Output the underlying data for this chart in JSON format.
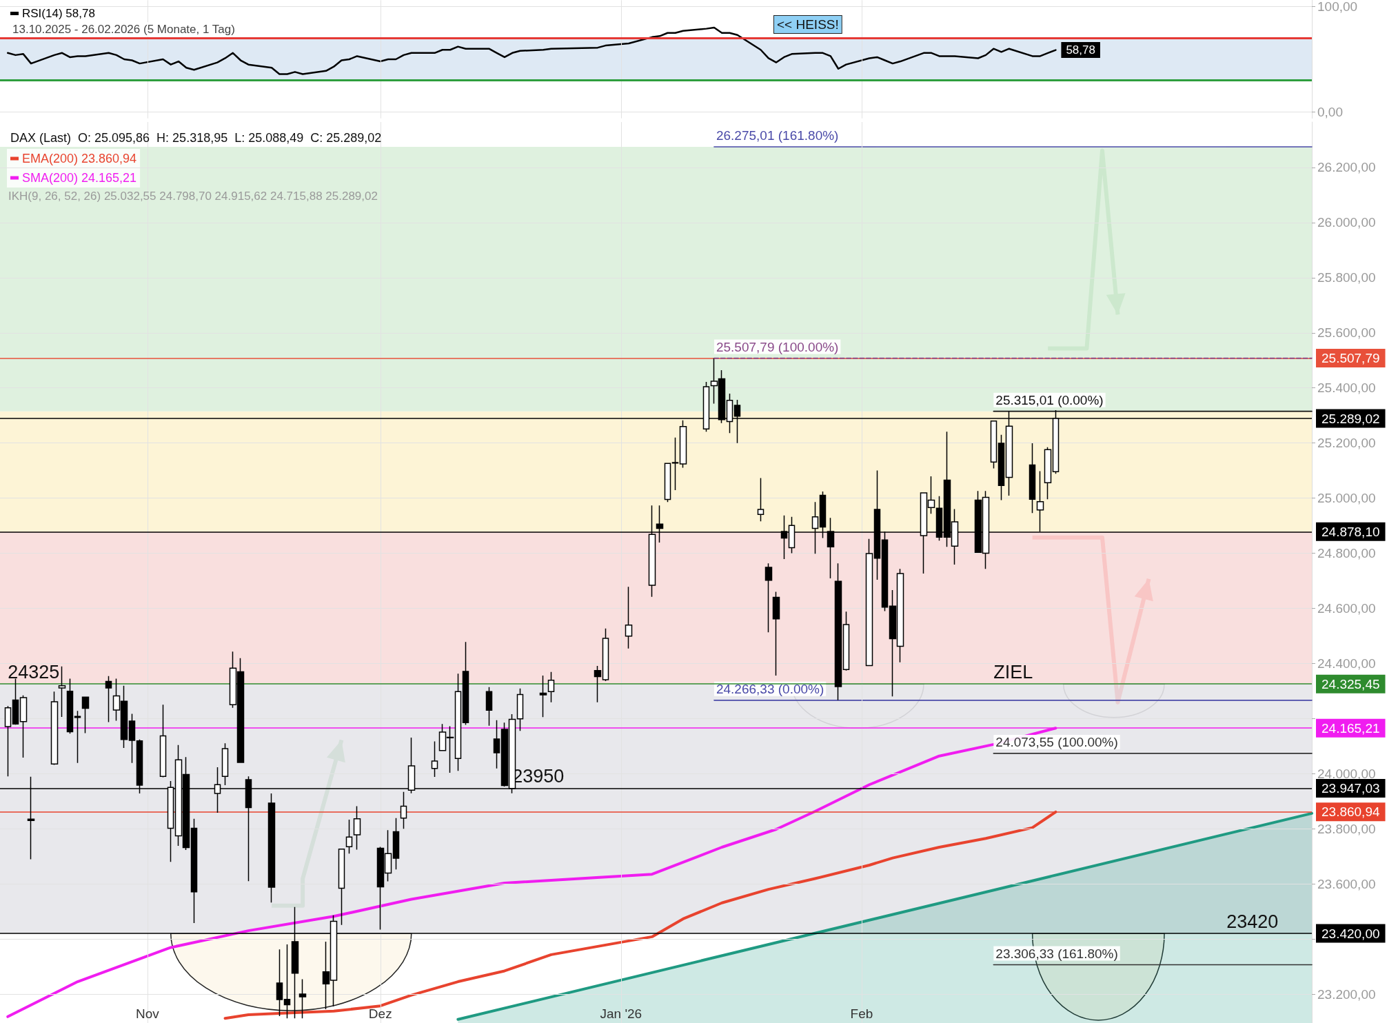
{
  "chart_data": [
    {
      "type": "line",
      "subtitle": "13.10.2025 - 26.02.2026 (5 Monate, 1 Tag)",
      "x": [
        "2025-10-14",
        "2025-10-15",
        "2025-10-16",
        "2025-10-17",
        "2025-10-20",
        "2025-10-21",
        "2025-10-22",
        "2025-10-23",
        "2025-10-24",
        "2025-10-27",
        "2025-10-28",
        "2025-10-29",
        "2025-10-30",
        "2025-10-31",
        "2025-11-03",
        "2025-11-04",
        "2025-11-05",
        "2025-11-06",
        "2025-11-07",
        "2025-11-10",
        "2025-11-11",
        "2025-11-12",
        "2025-11-13",
        "2025-11-14",
        "2025-11-17",
        "2025-11-18",
        "2025-11-19",
        "2025-11-20",
        "2025-11-21",
        "2025-11-24",
        "2025-11-25",
        "2025-11-26",
        "2025-11-27",
        "2025-11-28",
        "2025-12-01",
        "2025-12-02",
        "2025-12-03",
        "2025-12-04",
        "2025-12-05",
        "2025-12-08",
        "2025-12-09",
        "2025-12-10",
        "2025-12-11",
        "2025-12-12",
        "2025-12-15",
        "2025-12-16",
        "2025-12-17",
        "2025-12-18",
        "2025-12-19",
        "2025-12-22",
        "2025-12-23",
        "2025-12-29",
        "2025-12-30",
        "2026-01-02",
        "2026-01-05",
        "2026-01-06",
        "2026-01-07",
        "2026-01-08",
        "2026-01-09",
        "2026-01-12",
        "2026-01-13",
        "2026-01-14",
        "2026-01-15",
        "2026-01-16",
        "2026-01-19",
        "2026-01-20",
        "2026-01-21",
        "2026-01-22",
        "2026-01-23",
        "2026-01-26",
        "2026-01-27",
        "2026-01-28",
        "2026-01-29",
        "2026-01-30",
        "2026-02-02",
        "2026-02-03",
        "2026-02-04",
        "2026-02-05",
        "2026-02-06",
        "2026-02-09",
        "2026-02-10",
        "2026-02-11",
        "2026-02-12",
        "2026-02-13",
        "2026-02-16",
        "2026-02-17",
        "2026-02-18",
        "2026-02-19",
        "2026-02-20",
        "2026-02-23",
        "2026-02-24",
        "2026-02-25",
        "2026-02-26"
      ],
      "series": [
        {
          "name": "RSI(14) 58,78",
          "color": "#000000",
          "values": [
            56,
            54,
            55,
            46,
            54,
            56,
            52,
            53,
            53,
            56,
            54,
            50,
            49,
            46,
            50,
            45,
            48,
            42,
            40,
            47,
            51,
            56,
            49,
            45,
            42,
            36,
            36,
            38,
            36,
            39,
            43,
            49,
            50,
            53,
            48,
            50,
            50,
            54,
            56,
            56,
            59,
            59,
            62,
            60,
            60,
            56,
            52,
            56,
            58,
            59,
            60,
            61,
            63,
            65,
            71,
            72,
            75,
            75,
            77,
            79,
            80,
            75,
            75,
            73,
            59,
            51,
            47,
            52,
            55,
            56,
            56,
            53,
            41,
            45,
            51,
            52,
            49,
            46,
            48,
            56,
            56,
            53,
            53,
            53,
            51,
            54,
            60,
            57,
            60,
            53,
            53,
            56,
            58.78
          ],
          "value_labels": [
            null,
            null,
            null,
            null,
            null,
            null,
            null,
            null,
            null,
            null,
            null,
            null,
            null,
            null,
            null,
            null,
            null,
            null,
            null,
            null,
            null,
            null,
            null,
            null,
            null,
            null,
            null,
            null,
            null,
            null,
            null,
            null,
            null,
            null,
            null,
            null,
            null,
            null,
            null,
            null,
            null,
            null,
            null,
            null,
            null,
            null,
            null,
            null,
            null,
            null,
            null,
            null,
            null,
            null,
            null,
            null,
            null,
            null,
            null,
            null,
            null,
            null,
            null,
            null,
            null,
            null,
            null,
            null,
            null,
            null,
            null,
            null,
            null,
            null,
            null,
            null,
            null,
            null,
            null,
            null,
            null,
            null,
            null,
            null,
            null,
            null,
            null,
            null,
            null,
            null,
            null,
            null,
            "58,78"
          ]
        }
      ],
      "xlim": [
        "2025-10-13",
        "2026-03-31"
      ],
      "xticks": [
        {
          "value": "2025-11-01",
          "label": null
        },
        {
          "value": "2025-12-01",
          "label": null
        },
        {
          "value": "2026-01-01",
          "label": null
        },
        {
          "value": "2026-02-01",
          "label": null
        }
      ],
      "ylim": [
        -6,
        106
      ],
      "yticks": [
        {
          "value": 0,
          "label": "0,00"
        },
        {
          "value": 100,
          "label": "100,00"
        }
      ],
      "ref_lines": [
        {
          "axis": "y",
          "value": 70,
          "color": "#e53935"
        },
        {
          "axis": "y",
          "value": 30,
          "color": "#2e9e3e"
        }
      ],
      "bands": [
        {
          "axis": "y",
          "from": 30,
          "to": 70,
          "color": "#dae7f3"
        }
      ],
      "annotations": [
        "<< HEISS!"
      ],
      "tick_labels": "y",
      "grid": true,
      "legend": "top left",
      "marker": "none"
    },
    {
      "type": "candlestick",
      "title": "DAX (Last)  O: 25.095,86  H: 25.318,95  L: 25.088,49  C: 25.289,02",
      "color": "#000000",
      "x": [
        "2025-10-14",
        "2025-10-15",
        "2025-10-16",
        "2025-10-17",
        "2025-10-20",
        "2025-10-21",
        "2025-10-22",
        "2025-10-23",
        "2025-10-24",
        "2025-10-27",
        "2025-10-28",
        "2025-10-29",
        "2025-10-30",
        "2025-10-31",
        "2025-11-03",
        "2025-11-04",
        "2025-11-05",
        "2025-11-06",
        "2025-11-07",
        "2025-11-10",
        "2025-11-11",
        "2025-11-12",
        "2025-11-13",
        "2025-11-14",
        "2025-11-17",
        "2025-11-18",
        "2025-11-19",
        "2025-11-20",
        "2025-11-21",
        "2025-11-24",
        "2025-11-25",
        "2025-11-26",
        "2025-11-27",
        "2025-11-28",
        "2025-12-01",
        "2025-12-02",
        "2025-12-03",
        "2025-12-04",
        "2025-12-05",
        "2025-12-08",
        "2025-12-09",
        "2025-12-10",
        "2025-12-11",
        "2025-12-12",
        "2025-12-15",
        "2025-12-16",
        "2025-12-17",
        "2025-12-18",
        "2025-12-19",
        "2025-12-22",
        "2025-12-23",
        "2025-12-29",
        "2025-12-30",
        "2026-01-02",
        "2026-01-05",
        "2026-01-06",
        "2026-01-07",
        "2026-01-08",
        "2026-01-09",
        "2026-01-12",
        "2026-01-13",
        "2026-01-14",
        "2026-01-15",
        "2026-01-16",
        "2026-01-19",
        "2026-01-20",
        "2026-01-21",
        "2026-01-22",
        "2026-01-23",
        "2026-01-26",
        "2026-01-27",
        "2026-01-28",
        "2026-01-29",
        "2026-01-30",
        "2026-02-02",
        "2026-02-03",
        "2026-02-04",
        "2026-02-05",
        "2026-02-06",
        "2026-02-09",
        "2026-02-10",
        "2026-02-11",
        "2026-02-12",
        "2026-02-13",
        "2026-02-16",
        "2026-02-17",
        "2026-02-18",
        "2026-02-19",
        "2026-02-20",
        "2026-02-23",
        "2026-02-24",
        "2026-02-25",
        "2026-02-26"
      ],
      "ohlc": [
        [
          24171,
          24245,
          23990,
          24239
        ],
        [
          24267,
          24345,
          24178,
          24180
        ],
        [
          24189,
          24284,
          24058,
          24276
        ],
        [
          23835,
          23989,
          23689,
          23830
        ],
        [
          24035,
          24298,
          24032,
          24261
        ],
        [
          24311,
          24389,
          24206,
          24319
        ],
        [
          24299,
          24345,
          24145,
          24152
        ],
        [
          24208,
          24228,
          24039,
          24204
        ],
        [
          24278,
          24278,
          24147,
          24237
        ],
        [
          24335,
          24354,
          24187,
          24311
        ],
        [
          24231,
          24345,
          24192,
          24282
        ],
        [
          24263,
          24319,
          24093,
          24124
        ],
        [
          24191,
          24217,
          24039,
          24121
        ],
        [
          24119,
          24124,
          23928,
          23958
        ],
        [
          23990,
          24250,
          23987,
          24137
        ],
        [
          23802,
          23973,
          23680,
          23950
        ],
        [
          23774,
          24104,
          23738,
          24050
        ],
        [
          23997,
          24060,
          23723,
          23732
        ],
        [
          23802,
          23836,
          23458,
          23571
        ],
        [
          23928,
          24023,
          23858,
          23960
        ],
        [
          23990,
          24110,
          23958,
          24091
        ],
        [
          24250,
          24443,
          24239,
          24383
        ],
        [
          24370,
          24419,
          24041,
          24041
        ],
        [
          23978,
          23990,
          23610,
          23877
        ],
        [
          23893,
          23928,
          23532,
          23588
        ],
        [
          23240,
          23362,
          23120,
          23180
        ],
        [
          23181,
          23380,
          23112,
          23161
        ],
        [
          23390,
          23516,
          23112,
          23276
        ],
        [
          23200,
          23254,
          23112,
          23190
        ],
        [
          23281,
          23390,
          23145,
          23237
        ],
        [
          23250,
          23486,
          23155,
          23464
        ],
        [
          23584,
          23726,
          23451,
          23726
        ],
        [
          23735,
          23833,
          23710,
          23770
        ],
        [
          23778,
          23882,
          23724,
          23836
        ],
        [
          23729,
          23734,
          23434,
          23589
        ],
        [
          23639,
          23795,
          23609,
          23710
        ],
        [
          23789,
          23839,
          23652,
          23693
        ],
        [
          23839,
          23934,
          23800,
          23882
        ],
        [
          23940,
          24131,
          23929,
          24028
        ],
        [
          24019,
          24117,
          23988,
          24046
        ],
        [
          24084,
          24180,
          24084,
          24151
        ],
        [
          24132,
          24172,
          24003,
          24130
        ],
        [
          24055,
          24363,
          24010,
          24298
        ],
        [
          24371,
          24478,
          24177,
          24185
        ],
        [
          24298,
          24314,
          24174,
          24230
        ],
        [
          24126,
          24194,
          24019,
          24076
        ],
        [
          24161,
          24185,
          23953,
          23957
        ],
        [
          23946,
          24216,
          23929,
          24197
        ],
        [
          24199,
          24309,
          24155,
          24287
        ],
        [
          24292,
          24356,
          24205,
          24286
        ],
        [
          24298,
          24369,
          24259,
          24339
        ],
        [
          24374,
          24391,
          24259,
          24352
        ],
        [
          24341,
          24527,
          24336,
          24491
        ],
        [
          24499,
          24678,
          24454,
          24539
        ],
        [
          24684,
          24973,
          24642,
          24868
        ],
        [
          24906,
          24973,
          24839,
          24890
        ],
        [
          24995,
          25126,
          24986,
          25126
        ],
        [
          25127,
          25220,
          25029,
          25129
        ],
        [
          25124,
          25282,
          25110,
          25260
        ],
        [
          25251,
          25422,
          25241,
          25404
        ],
        [
          25408,
          25507.79,
          25343,
          25424
        ],
        [
          25433,
          25464,
          25272,
          25285
        ],
        [
          25278,
          25379,
          25236,
          25355
        ],
        [
          25337,
          25357,
          25200,
          25297
        ],
        [
          24941,
          25073,
          24916,
          24959
        ],
        [
          24749,
          24763,
          24513,
          24702
        ],
        [
          24640,
          24660,
          24356,
          24562
        ],
        [
          24879,
          24937,
          24779,
          24855
        ],
        [
          24820,
          24932,
          24800,
          24901
        ],
        [
          24890,
          24986,
          24798,
          24932
        ],
        [
          25010,
          25024,
          24855,
          24895
        ],
        [
          24879,
          24928,
          24709,
          24823
        ],
        [
          24698,
          24763,
          24266.33,
          24316
        ],
        [
          24378,
          24588,
          24374,
          24541
        ],
        [
          24392,
          24852,
          24392,
          24799
        ],
        [
          24959,
          25100,
          24704,
          24782
        ],
        [
          24848,
          24879,
          24590,
          24604
        ],
        [
          24608,
          24666,
          24280,
          24490
        ],
        [
          24462,
          24743,
          24404,
          24726
        ],
        [
          24864,
          25019,
          24726,
          25019
        ],
        [
          24966,
          25079,
          24943,
          24993
        ],
        [
          24963,
          25007,
          24846,
          24858
        ],
        [
          25065,
          25241,
          24823,
          24858
        ],
        [
          24826,
          24960,
          24759,
          24914
        ],
        [
          24993,
          25026,
          24803,
          24803
        ],
        [
          24800,
          25026,
          24743,
          25003
        ],
        [
          25131,
          25280,
          25108,
          25280
        ],
        [
          25199,
          25230,
          24993,
          25046
        ],
        [
          25075,
          25315.01,
          25009,
          25261
        ],
        [
          25120,
          25199,
          24946,
          24996
        ],
        [
          24957,
          25098,
          24878.1,
          24987
        ],
        [
          25056,
          25185,
          24996,
          25176
        ],
        [
          25095.86,
          25318.95,
          25088.49,
          25289.02
        ]
      ],
      "series": [
        {
          "type": "line",
          "name": "EMA(200) 23.860,94",
          "color": "#e8432e",
          "x": [
            "2025-11-11",
            "2025-11-14",
            "2025-11-19",
            "2025-11-25",
            "2025-12-01",
            "2025-12-05",
            "2025-12-11",
            "2025-12-17",
            "2025-12-23",
            "2026-01-05",
            "2026-01-09",
            "2026-01-14",
            "2026-01-20",
            "2026-01-26",
            "2026-02-02",
            "2026-02-05",
            "2026-02-11",
            "2026-02-17",
            "2026-02-23",
            "2026-02-26"
          ],
          "values": [
            23112,
            23125,
            23131,
            23138,
            23157,
            23196,
            23245,
            23284,
            23343,
            23408,
            23473,
            23531,
            23580,
            23619,
            23668,
            23694,
            23733,
            23765,
            23804,
            23860.94
          ]
        },
        {
          "type": "line",
          "name": "SMA(200) 24.165,21",
          "color": "#f01df0",
          "x": [
            "2025-10-14",
            "2025-10-23",
            "2025-11-04",
            "2025-11-14",
            "2025-11-25",
            "2025-12-05",
            "2025-12-17",
            "2026-01-05",
            "2026-01-14",
            "2026-01-21",
            "2026-01-26",
            "2026-02-02",
            "2026-02-11",
            "2026-02-18",
            "2026-02-26"
          ],
          "values": [
            23118,
            23245,
            23369,
            23430,
            23482,
            23544,
            23603,
            23635,
            23733,
            23798,
            23863,
            23960,
            24064,
            24106,
            24165.21
          ]
        },
        {
          "type": "area",
          "color": "#1f9a82",
          "x": [
            "2025-12-11",
            "2026-03-31"
          ],
          "values": [
            23108,
            23856
          ]
        },
        {
          "type": "line",
          "color": "#4a4aa8",
          "x": [
            "2026-01-13",
            "2026-03-31"
          ],
          "values": [
            26275.01,
            26275.01
          ],
          "value_labels": [
            "26.275,01 (161.80%)",
            null
          ]
        },
        {
          "type": "line",
          "color": "#8a4a8a",
          "line_style": "dashed",
          "x": [
            "2026-01-13",
            "2026-03-31"
          ],
          "values": [
            25507.79,
            25507.79
          ],
          "value_labels": [
            "25.507,79 (100.00%)",
            null
          ]
        },
        {
          "type": "line",
          "color": "#4a4aa8",
          "x": [
            "2026-01-13",
            "2026-03-31"
          ],
          "values": [
            24266.33,
            24266.33
          ],
          "value_labels": [
            "24.266,33 (0.00%)",
            null
          ]
        },
        {
          "type": "line",
          "color": "#111111",
          "x": [
            "2026-02-18",
            "2026-03-31"
          ],
          "values": [
            25315.01,
            25315.01
          ],
          "value_labels": [
            "25.315,01 (0.00%)",
            null
          ]
        },
        {
          "type": "line",
          "color": "#333333",
          "x": [
            "2026-02-18",
            "2026-03-31"
          ],
          "values": [
            24073.55,
            24073.55
          ],
          "value_labels": [
            "24.073,55 (100.00%)",
            null
          ]
        },
        {
          "type": "line",
          "color": "#333333",
          "x": [
            "2026-02-18",
            "2026-03-31"
          ],
          "values": [
            23306.33,
            23306.33
          ],
          "value_labels": [
            "23.306,33 (161.80%)",
            null
          ]
        }
      ],
      "xlim": [
        "2025-10-13",
        "2026-03-31"
      ],
      "xticks": [
        {
          "value": "2025-11-01",
          "label": "Nov"
        },
        {
          "value": "2025-12-01",
          "label": "Dez"
        },
        {
          "value": "2026-01-01",
          "label": "Jan '26"
        },
        {
          "value": "2026-02-01",
          "label": "Feb"
        }
      ],
      "ylim": [
        23095,
        26365
      ],
      "yticks": [
        {
          "value": 23200,
          "label": "23.200,00"
        },
        {
          "value": 23400,
          "label": null
        },
        {
          "value": 23600,
          "label": "23.600,00"
        },
        {
          "value": 23800,
          "label": "23.800,00"
        },
        {
          "value": 24000,
          "label": "24.000,00"
        },
        {
          "value": 24200,
          "label": null
        },
        {
          "value": 24400,
          "label": "24.400,00"
        },
        {
          "value": 24600,
          "label": "24.600,00"
        },
        {
          "value": 24800,
          "label": "24.800,00"
        },
        {
          "value": 25000,
          "label": "25.000,00"
        },
        {
          "value": 25200,
          "label": "25.200,00"
        },
        {
          "value": 25400,
          "label": "25.400,00"
        },
        {
          "value": 25600,
          "label": "25.600,00"
        },
        {
          "value": 25800,
          "label": "25.800,00"
        },
        {
          "value": 26000,
          "label": "26.000,00"
        },
        {
          "value": 26200,
          "label": "26.200,00"
        }
      ],
      "ref_lines": [
        {
          "axis": "y",
          "value": 25507.79,
          "label": "25.507,79",
          "color": "#e8503a"
        },
        {
          "axis": "y",
          "value": 25289.02,
          "label": "25.289,02",
          "color": "#000000"
        },
        {
          "axis": "y",
          "value": 24878.1,
          "label": "24.878,10",
          "color": "#000000"
        },
        {
          "axis": "y",
          "value": 24325.45,
          "label": "24.325,45",
          "color": "#2e8b2e"
        },
        {
          "axis": "y",
          "value": 24165.21,
          "label": "24.165,21",
          "color": "#f01df0"
        },
        {
          "axis": "y",
          "value": 23947.03,
          "label": "23.947,03",
          "color": "#000000"
        },
        {
          "axis": "y",
          "value": 23860.94,
          "label": "23.860,94",
          "color": "#e8432e"
        },
        {
          "axis": "y",
          "value": 23420,
          "label": "23.420,00",
          "color": "#000000"
        }
      ],
      "bands": [
        {
          "axis": "y",
          "from": 23420,
          "to": 24325.45,
          "color": "#e6e6ea"
        },
        {
          "axis": "y",
          "from": 24325.45,
          "to": 24878.1,
          "color": "#f8dcda"
        },
        {
          "axis": "y",
          "from": 24878.1,
          "to": 25315.01,
          "color": "#fdf3d2"
        },
        {
          "axis": "y",
          "from": 25315.01,
          "to": 26275.01,
          "color": "#dcefdc"
        }
      ],
      "annotations": [
        "IKH(9, 26, 52, 26) 25.032,55 24.798,70 24.915,62 24.715,88 25.289,02",
        {
          "text": "24325",
          "x": "2025-10-14",
          "y": 24325.45
        },
        {
          "text": "23950",
          "x": "2025-12-18",
          "y": 23947.03
        },
        {
          "text": "23420",
          "x": "2026-03-20",
          "y": 23420
        },
        {
          "text": "ZIEL",
          "x": "2026-02-18",
          "y": 24325.45
        }
      ],
      "grid": true,
      "legend": "top left",
      "marker": "none"
    }
  ]
}
